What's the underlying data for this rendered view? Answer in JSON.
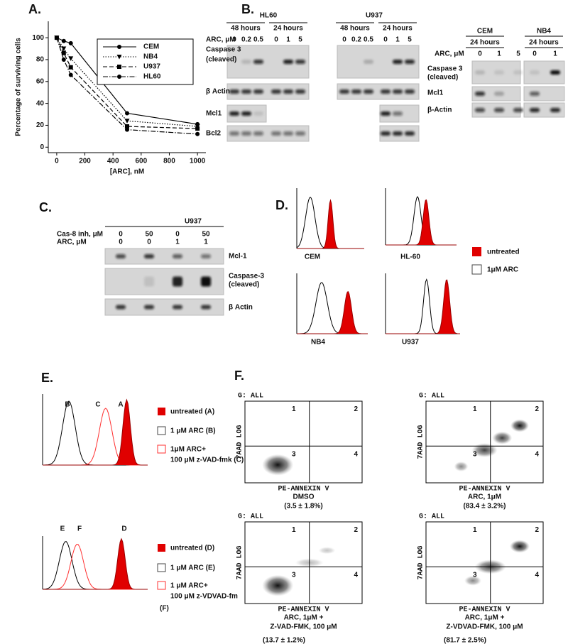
{
  "chart_data": {
    "type": "line",
    "panel_label": "A.",
    "y_label": "Percentage of surviving cells",
    "x_label": "[ARC], nM",
    "x": [
      0,
      50,
      100,
      500,
      1000
    ],
    "series": [
      {
        "name": "CEM",
        "color": "#000000",
        "line_style": "solid",
        "marker": "circle",
        "values": [
          100,
          97,
          95,
          31,
          21
        ]
      },
      {
        "name": "NB4",
        "color": "#000000",
        "line_style": "dotted",
        "marker": "triangle-down",
        "values": [
          100,
          90,
          81,
          24,
          19
        ]
      },
      {
        "name": "U937",
        "color": "#000000",
        "line_style": "dashed",
        "marker": "square",
        "values": [
          100,
          86,
          73,
          19,
          17
        ]
      },
      {
        "name": "HL60",
        "color": "#000000",
        "line_style": "dashdot",
        "marker": "circle",
        "values": [
          100,
          80,
          66,
          16,
          12
        ]
      }
    ],
    "xlim": [
      -60,
      1060
    ],
    "xticks": [
      0,
      200,
      400,
      600,
      800,
      1000
    ],
    "ylim": [
      -5,
      115
    ],
    "yticks": [
      0,
      20,
      40,
      60,
      80,
      100
    ],
    "legend": "upper right"
  },
  "panel_b": {
    "label": "B.",
    "arc_label": "ARC, μM",
    "groups": [
      {
        "cell_line": "HL60",
        "times": [
          "48 hours",
          "24 hours"
        ],
        "doses": [
          0,
          0.2,
          0.5,
          0,
          1,
          5
        ]
      },
      {
        "cell_line": "U937",
        "times": [
          "48 hours",
          "24 hours"
        ],
        "doses": [
          0,
          0.2,
          0.5,
          0,
          1,
          5
        ]
      },
      {
        "cell_line": "CEM",
        "times": [
          "24 hours"
        ],
        "doses": [
          0,
          1,
          5
        ]
      },
      {
        "cell_line": "NB4",
        "times": [
          "24 hours"
        ],
        "doses": [
          0,
          1
        ]
      }
    ],
    "left_rows": [
      [
        "Caspase 3",
        "(cleaved)"
      ],
      [
        "β Actin"
      ],
      [
        "Mcl1"
      ],
      [
        "Bcl2"
      ]
    ],
    "right_rows": [
      [
        "Caspase 3",
        "(cleaved)"
      ],
      [
        "Mcl1"
      ],
      [
        "β-Actin"
      ]
    ]
  },
  "panel_c": {
    "label": "C.",
    "cell_line": "U937",
    "treatments": [
      {
        "name": "Cas-8 inh, μM",
        "doses": [
          0,
          50,
          0,
          50
        ]
      },
      {
        "name": "ARC, μM",
        "doses": [
          0,
          0,
          1,
          1
        ]
      }
    ],
    "rows": [
      [
        "Mcl-1"
      ],
      [
        "Caspase-3",
        "(cleaved)"
      ],
      [
        "β Actin"
      ]
    ]
  },
  "panel_d": {
    "label": "D.",
    "plots": [
      "CEM",
      "HL-60",
      "NB4",
      "U937"
    ],
    "legend": [
      "untreated",
      "1μM ARC"
    ]
  },
  "panel_e": {
    "label": "E.",
    "top": {
      "peaks": [
        "B",
        "C",
        "A"
      ],
      "legend": [
        [
          "untreated (A)"
        ],
        [
          "1 μM ARC (B)"
        ],
        [
          "1μM ARC+",
          "100 μM z-VAD-fmk (C)"
        ]
      ]
    },
    "bottom": {
      "peaks": [
        "E",
        "F",
        "D"
      ],
      "legend": [
        [
          "untreated (D)"
        ],
        [
          "1 μM ARC (E)"
        ],
        [
          "1 μM ARC+",
          "100 μM z-VDVAD-fm",
          "(F)"
        ]
      ]
    }
  },
  "panel_f": {
    "label": "F.",
    "gate": "G: ALL",
    "y_axis": "7AAD LOG",
    "x_axis": "PE-ANNEXIN V",
    "quadrants": [
      "1",
      "2",
      "3",
      "4"
    ],
    "plots": [
      {
        "caption": [
          "DMSO"
        ],
        "percent": "(3.5 ± 1.8%)"
      },
      {
        "caption": [
          "ARC, 1μM"
        ],
        "percent": "(83.4 ± 3.2%)"
      },
      {
        "caption": [
          "ARC, 1μM +",
          "Z-VAD-FMK, 100 μM"
        ],
        "percent": "(13.7 ± 1.2%)"
      },
      {
        "caption": [
          "ARC, 1μM +",
          "Z-VDVAD-FMK, 100 μM"
        ],
        "percent": "(81.7 ± 2.5%)"
      }
    ]
  }
}
